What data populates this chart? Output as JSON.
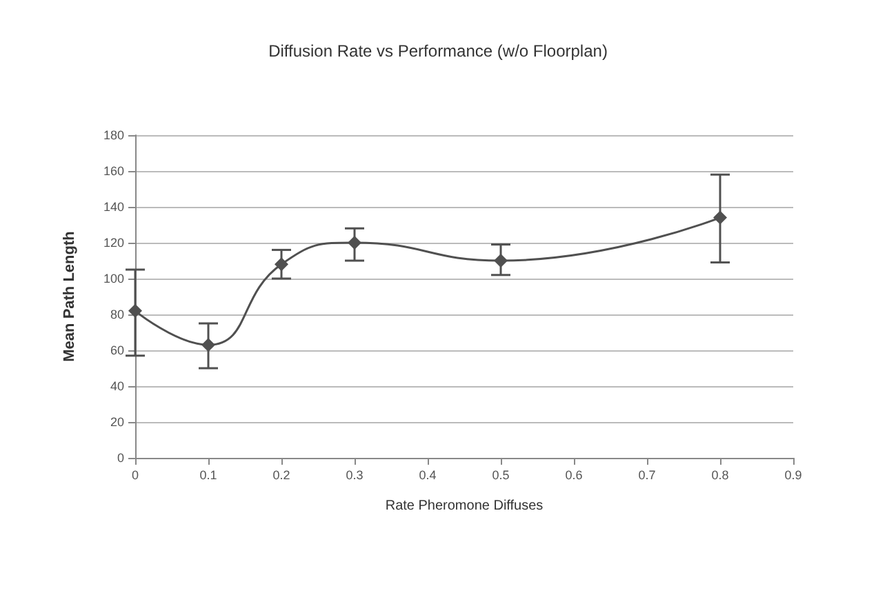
{
  "chart_data": {
    "type": "line",
    "title": "Diffusion Rate vs Performance (w/o Floorplan)",
    "xlabel": "Rate Pheromone Diffuses",
    "ylabel": "Mean Path Length",
    "x": [
      0,
      0.1,
      0.2,
      0.3,
      0.5,
      0.8
    ],
    "series": [
      {
        "color": "#505050",
        "values": [
          82,
          63,
          108,
          120,
          110,
          134
        ],
        "errors": [
          [
            57,
            105
          ],
          [
            50,
            75
          ],
          [
            100,
            116
          ],
          [
            110,
            128
          ],
          [
            102,
            119
          ],
          [
            109,
            158
          ]
        ]
      }
    ],
    "xlim": [
      0,
      0.9
    ],
    "xticks": [
      0,
      0.1,
      0.2,
      0.3,
      0.4,
      0.5,
      0.6,
      0.7,
      0.8,
      0.9
    ],
    "ylim": [
      0,
      180
    ],
    "yticks": [
      0,
      20,
      40,
      60,
      80,
      100,
      120,
      140,
      160,
      180
    ],
    "grid": "y",
    "marker": "diamond",
    "line_style": "solid"
  }
}
